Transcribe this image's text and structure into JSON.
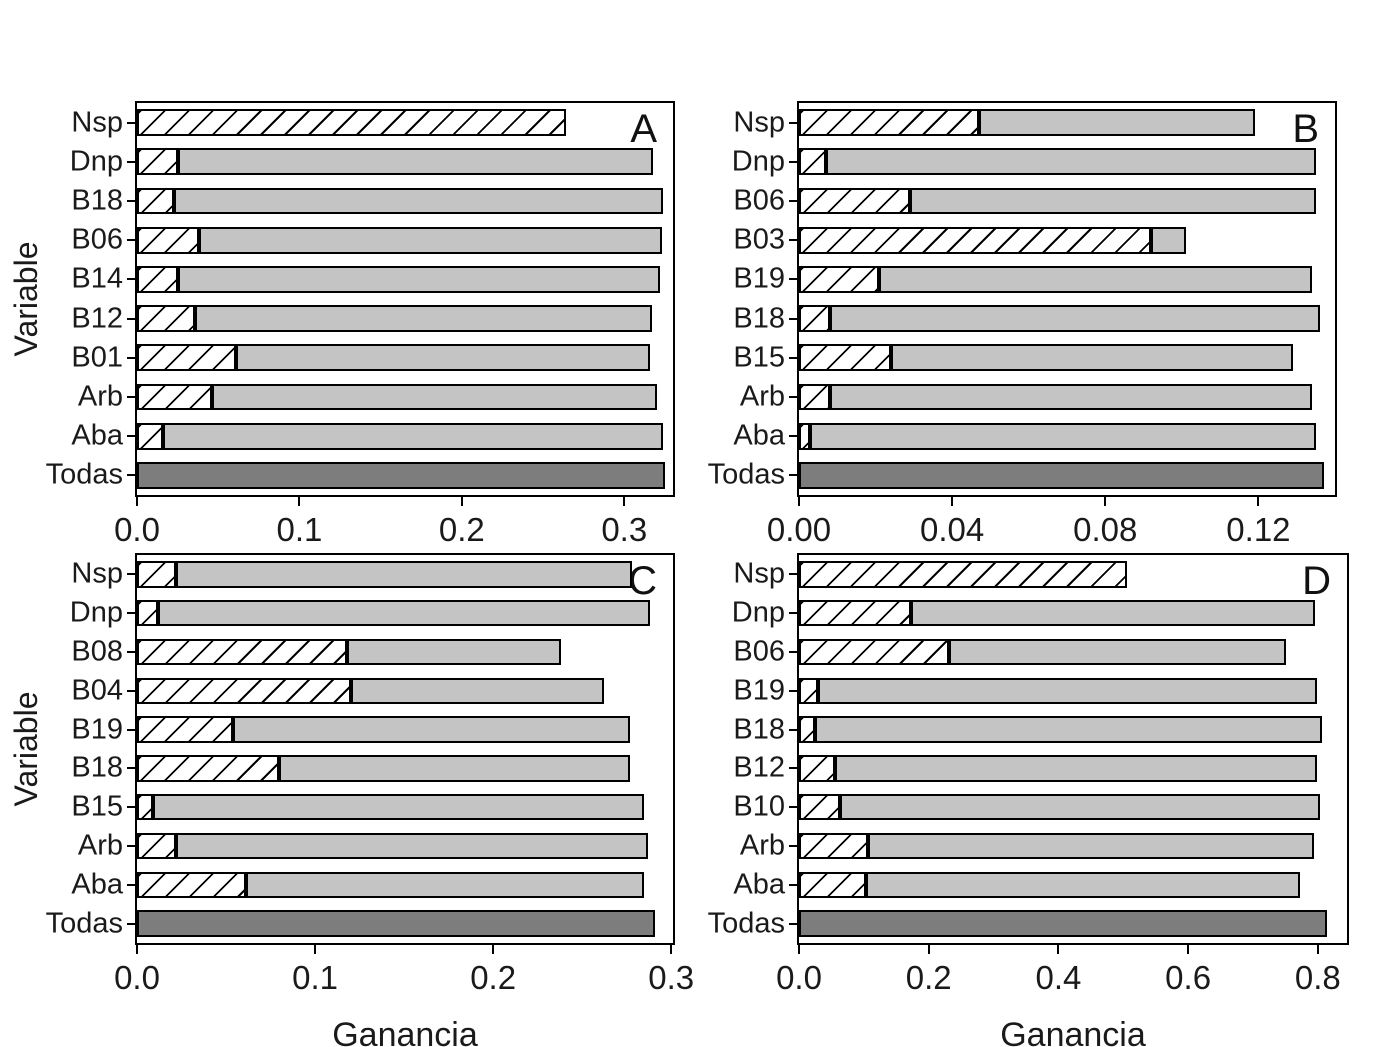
{
  "figure": {
    "background": "#ffffff",
    "colors": {
      "light_bar": "#c4c4c4",
      "dark_bar": "#7d7d7d",
      "hatch_background": "#ffffff",
      "hatch_line": "#000000",
      "outline": "#000000"
    }
  },
  "chart_data": [
    {
      "type": "bar",
      "orientation": "horizontal",
      "panel_label": "A",
      "ylabel": "Variable",
      "xlabel": "",
      "xlim": [
        0,
        0.33
      ],
      "grid": false,
      "legend": "none",
      "xticks": [
        {
          "value": 0.0,
          "label": "0.0"
        },
        {
          "value": 0.1,
          "label": "0.1"
        },
        {
          "value": 0.2,
          "label": "0.2"
        },
        {
          "value": 0.3,
          "label": "0.3"
        }
      ],
      "rows": [
        {
          "category": "Nsp",
          "hatched": 0.264,
          "total": 0.264,
          "dark": false
        },
        {
          "category": "Dnp",
          "hatched": 0.025,
          "total": 0.318,
          "dark": false
        },
        {
          "category": "B18",
          "hatched": 0.023,
          "total": 0.324,
          "dark": false
        },
        {
          "category": "B06",
          "hatched": 0.038,
          "total": 0.323,
          "dark": false
        },
        {
          "category": "B14",
          "hatched": 0.025,
          "total": 0.322,
          "dark": false
        },
        {
          "category": "B12",
          "hatched": 0.036,
          "total": 0.317,
          "dark": false
        },
        {
          "category": "B01",
          "hatched": 0.061,
          "total": 0.316,
          "dark": false
        },
        {
          "category": "Arb",
          "hatched": 0.046,
          "total": 0.32,
          "dark": false
        },
        {
          "category": "Aba",
          "hatched": 0.016,
          "total": 0.324,
          "dark": false
        },
        {
          "category": "Todas",
          "hatched": 0.0,
          "total": 0.325,
          "dark": true
        }
      ]
    },
    {
      "type": "bar",
      "orientation": "horizontal",
      "panel_label": "B",
      "ylabel": "",
      "xlabel": "",
      "xlim": [
        0,
        0.14
      ],
      "grid": false,
      "legend": "none",
      "xticks": [
        {
          "value": 0.0,
          "label": "0.00"
        },
        {
          "value": 0.04,
          "label": "0.04"
        },
        {
          "value": 0.08,
          "label": "0.08"
        },
        {
          "value": 0.12,
          "label": "0.12"
        }
      ],
      "rows": [
        {
          "category": "Nsp",
          "hatched": 0.047,
          "total": 0.119,
          "dark": false
        },
        {
          "category": "Dnp",
          "hatched": 0.007,
          "total": 0.135,
          "dark": false
        },
        {
          "category": "B06",
          "hatched": 0.029,
          "total": 0.135,
          "dark": false
        },
        {
          "category": "B03",
          "hatched": 0.092,
          "total": 0.101,
          "dark": false
        },
        {
          "category": "B19",
          "hatched": 0.021,
          "total": 0.134,
          "dark": false
        },
        {
          "category": "B18",
          "hatched": 0.008,
          "total": 0.136,
          "dark": false
        },
        {
          "category": "B15",
          "hatched": 0.024,
          "total": 0.129,
          "dark": false
        },
        {
          "category": "Arb",
          "hatched": 0.008,
          "total": 0.134,
          "dark": false
        },
        {
          "category": "Aba",
          "hatched": 0.003,
          "total": 0.135,
          "dark": false
        },
        {
          "category": "Todas",
          "hatched": 0.0,
          "total": 0.137,
          "dark": true
        }
      ]
    },
    {
      "type": "bar",
      "orientation": "horizontal",
      "panel_label": "C",
      "ylabel": "Variable",
      "xlabel": "Ganancia",
      "xlim": [
        0,
        0.301
      ],
      "grid": false,
      "legend": "none",
      "xticks": [
        {
          "value": 0.0,
          "label": "0.0"
        },
        {
          "value": 0.1,
          "label": "0.1"
        },
        {
          "value": 0.2,
          "label": "0.2"
        },
        {
          "value": 0.3,
          "label": "0.3"
        }
      ],
      "rows": [
        {
          "category": "Nsp",
          "hatched": 0.022,
          "total": 0.278,
          "dark": false
        },
        {
          "category": "Dnp",
          "hatched": 0.012,
          "total": 0.288,
          "dark": false
        },
        {
          "category": "B08",
          "hatched": 0.118,
          "total": 0.238,
          "dark": false
        },
        {
          "category": "B04",
          "hatched": 0.12,
          "total": 0.262,
          "dark": false
        },
        {
          "category": "B19",
          "hatched": 0.054,
          "total": 0.277,
          "dark": false
        },
        {
          "category": "B18",
          "hatched": 0.08,
          "total": 0.277,
          "dark": false
        },
        {
          "category": "B15",
          "hatched": 0.009,
          "total": 0.285,
          "dark": false
        },
        {
          "category": "Arb",
          "hatched": 0.022,
          "total": 0.287,
          "dark": false
        },
        {
          "category": "Aba",
          "hatched": 0.061,
          "total": 0.285,
          "dark": false
        },
        {
          "category": "Todas",
          "hatched": 0.0,
          "total": 0.291,
          "dark": true
        }
      ]
    },
    {
      "type": "bar",
      "orientation": "horizontal",
      "panel_label": "D",
      "ylabel": "",
      "xlabel": "Ganancia",
      "xlim": [
        0,
        0.845
      ],
      "grid": false,
      "legend": "none",
      "xticks": [
        {
          "value": 0.0,
          "label": "0.0"
        },
        {
          "value": 0.2,
          "label": "0.2"
        },
        {
          "value": 0.4,
          "label": "0.4"
        },
        {
          "value": 0.6,
          "label": "0.6"
        },
        {
          "value": 0.8,
          "label": "0.8"
        }
      ],
      "rows": [
        {
          "category": "Nsp",
          "hatched": 0.505,
          "total": 0.505,
          "dark": false
        },
        {
          "category": "Dnp",
          "hatched": 0.173,
          "total": 0.795,
          "dark": false
        },
        {
          "category": "B06",
          "hatched": 0.232,
          "total": 0.751,
          "dark": false
        },
        {
          "category": "B19",
          "hatched": 0.03,
          "total": 0.799,
          "dark": false
        },
        {
          "category": "B18",
          "hatched": 0.025,
          "total": 0.807,
          "dark": false
        },
        {
          "category": "B12",
          "hatched": 0.055,
          "total": 0.799,
          "dark": false
        },
        {
          "category": "B10",
          "hatched": 0.063,
          "total": 0.804,
          "dark": false
        },
        {
          "category": "Arb",
          "hatched": 0.107,
          "total": 0.794,
          "dark": false
        },
        {
          "category": "Aba",
          "hatched": 0.104,
          "total": 0.772,
          "dark": false
        },
        {
          "category": "Todas",
          "hatched": 0.0,
          "total": 0.814,
          "dark": true
        }
      ]
    }
  ]
}
